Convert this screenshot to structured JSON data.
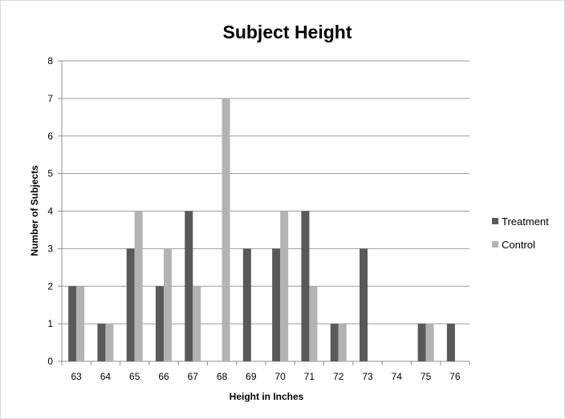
{
  "chart_data": {
    "type": "bar",
    "title": "Subject Height",
    "xlabel": "Height in Inches",
    "ylabel": "Number of Subjects",
    "ylim": [
      0,
      8
    ],
    "yticks": [
      "0",
      "1",
      "2",
      "3",
      "4",
      "5",
      "6",
      "7",
      "8"
    ],
    "categories": [
      "63",
      "64",
      "65",
      "66",
      "67",
      "68",
      "69",
      "70",
      "71",
      "72",
      "73",
      "74",
      "75",
      "76"
    ],
    "series": [
      {
        "name": "Treatment",
        "color": "#595959",
        "values": [
          2,
          1,
          3,
          2,
          4,
          0,
          3,
          3,
          4,
          1,
          3,
          0,
          1,
          1
        ]
      },
      {
        "name": "Control",
        "color": "#b3b3b3",
        "values": [
          2,
          1,
          4,
          3,
          2,
          7,
          0,
          4,
          2,
          1,
          0,
          0,
          1,
          0
        ]
      }
    ],
    "grid": true,
    "legend": "right"
  }
}
